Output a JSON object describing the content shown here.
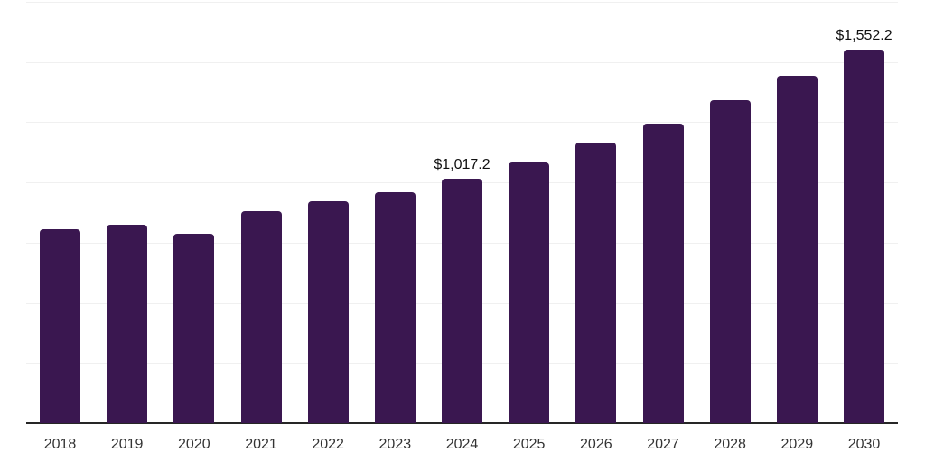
{
  "chart_data": {
    "type": "bar",
    "title": "",
    "xlabel": "",
    "ylabel": "",
    "categories": [
      "2018",
      "2019",
      "2020",
      "2021",
      "2022",
      "2023",
      "2024",
      "2025",
      "2026",
      "2027",
      "2028",
      "2029",
      "2030"
    ],
    "values": [
      806,
      824,
      787,
      881,
      922,
      959,
      1017.2,
      1083,
      1165,
      1245,
      1342,
      1443,
      1552.2
    ],
    "data_labels": [
      {
        "index": 6,
        "text": "$1,017.2"
      },
      {
        "index": 12,
        "text": "$1,552.2"
      }
    ],
    "ylim": [
      0,
      1750
    ],
    "grid_step": 250,
    "grid_on": true,
    "legend": "none",
    "colors": {
      "bar": "#3A1750",
      "gridline": "#f0f0f0",
      "axis_line": "#262626",
      "tick_label": "#333333",
      "data_label": "#111111",
      "background": "#ffffff"
    }
  }
}
